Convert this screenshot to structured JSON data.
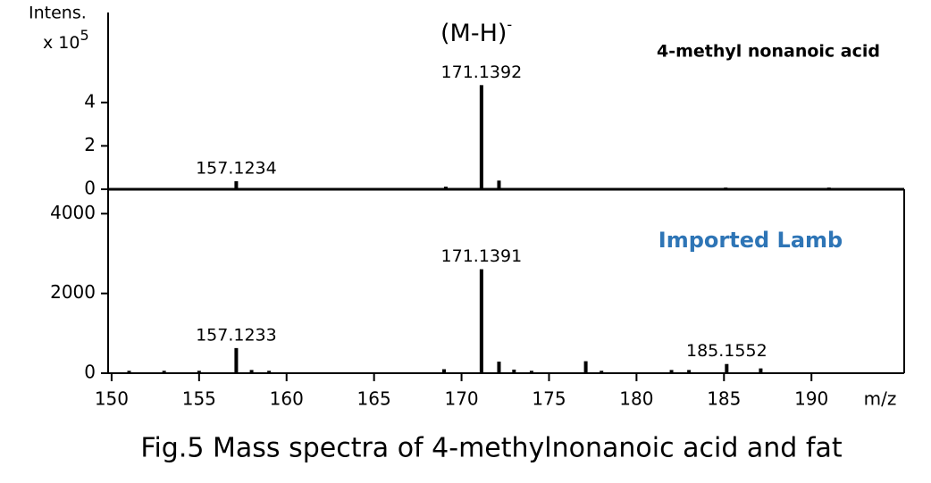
{
  "chart_data": [
    {
      "type": "stick",
      "title": "4-methyl nonanoic acid",
      "color": "#000000",
      "ylabel": "Intens.",
      "y_unit": "x 10",
      "y_unit_exponent": "5",
      "annotation": "(M-H)",
      "annotation_superscript": "-",
      "x": [
        157.1234,
        169.1,
        171.1392,
        172.14,
        185.1,
        191.0
      ],
      "values": [
        0.37,
        0.12,
        4.8,
        0.4,
        0.08,
        0.08
      ],
      "value_labels": [
        "157.1234",
        null,
        "171.1392",
        null,
        null,
        null
      ],
      "xlim": [
        149.8,
        195.3
      ],
      "ylim": [
        0,
        7.9
      ],
      "yticks": [
        0,
        2,
        4
      ]
    },
    {
      "type": "stick",
      "title": "Imported Lamb",
      "title_color": "#2e75b6",
      "color": "#000000",
      "x": [
        151,
        153,
        155,
        157.1233,
        158,
        159,
        169,
        171.1391,
        172.14,
        173,
        174,
        177.1,
        178,
        182,
        183,
        185.1552,
        187.1
      ],
      "values": [
        60,
        60,
        60,
        630,
        80,
        60,
        100,
        2607,
        290,
        90,
        60,
        300,
        60,
        80,
        80,
        230,
        120
      ],
      "value_labels": [
        null,
        null,
        null,
        "157.1233",
        null,
        null,
        null,
        "171.1391",
        null,
        null,
        null,
        null,
        null,
        null,
        null,
        "185.1552",
        null
      ],
      "xlim": [
        149.8,
        195.3
      ],
      "ylim": [
        0,
        4500
      ],
      "yticks": [
        0,
        2000,
        4000
      ],
      "xticks": [
        150,
        155,
        160,
        165,
        170,
        175,
        180,
        185,
        190
      ],
      "xlabel": "m/z"
    }
  ],
  "caption": "Fig.5 Mass spectra of 4-methylnonanoic acid and fat"
}
